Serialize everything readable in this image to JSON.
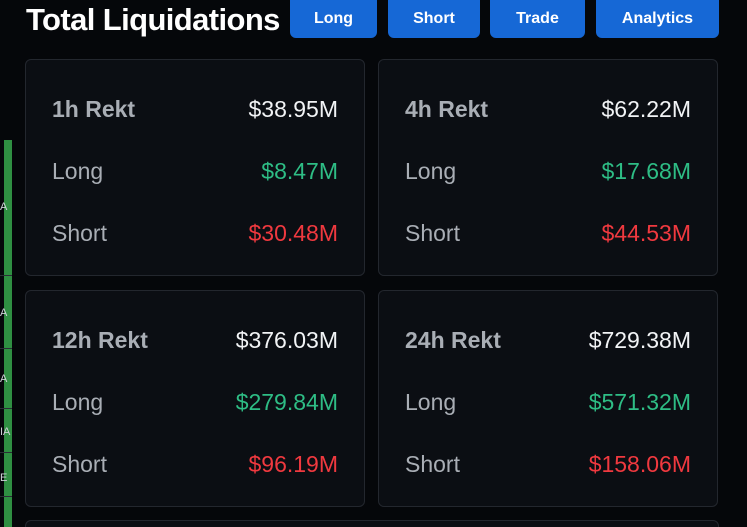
{
  "header": {
    "title": "Total Liquidations",
    "buttons": {
      "long": "Long",
      "short": "Short",
      "trade": "Trade",
      "analytics": "Analytics"
    }
  },
  "side_glyphs": [
    "A",
    "A",
    "A",
    "IA",
    "E"
  ],
  "cards": [
    {
      "period": "1h Rekt",
      "total": "$38.95M",
      "long_label": "Long",
      "long": "$8.47M",
      "short_label": "Short",
      "short": "$30.48M"
    },
    {
      "period": "4h Rekt",
      "total": "$62.22M",
      "long_label": "Long",
      "long": "$17.68M",
      "short_label": "Short",
      "short": "$44.53M"
    },
    {
      "period": "12h Rekt",
      "total": "$376.03M",
      "long_label": "Long",
      "long": "$279.84M",
      "short_label": "Short",
      "short": "$96.19M"
    },
    {
      "period": "24h Rekt",
      "total": "$729.38M",
      "long_label": "Long",
      "long": "$571.32M",
      "short_label": "Short",
      "short": "$158.06M"
    }
  ],
  "colors": {
    "accent": "#1668d6",
    "long": "#2ebd85",
    "short": "#f0393f",
    "background": "#05070a",
    "card": "#0b0e13"
  }
}
